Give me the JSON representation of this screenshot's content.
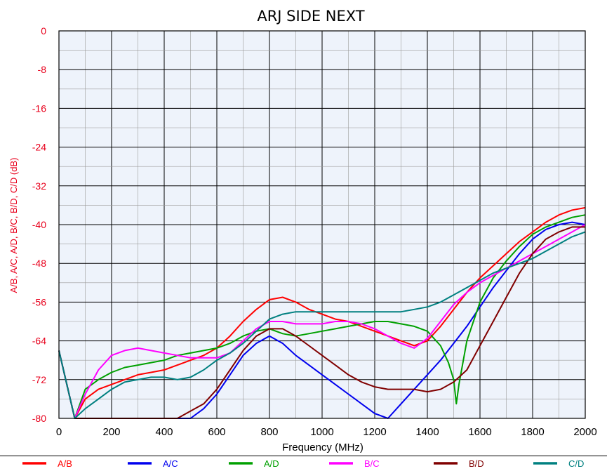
{
  "chart_data": {
    "type": "line",
    "title": "ARJ SIDE NEXT",
    "xlabel": "Frequency (MHz)",
    "ylabel": "A/B, A/C, A/D, B/C, B/D, C/D (dB)",
    "xlim": [
      0,
      2000
    ],
    "ylim": [
      -80,
      0
    ],
    "xticks": [
      "0",
      "200",
      "400",
      "600",
      "800",
      "1000",
      "1200",
      "1400",
      "1600",
      "1800",
      "2000"
    ],
    "yticks": [
      "0",
      "-8",
      "-16",
      "-24",
      "-32",
      "-40",
      "-48",
      "-56",
      "-64",
      "-72",
      "-80"
    ],
    "grid": true,
    "plot_background": "#eef3fb",
    "legend_position": "bottom",
    "series": [
      {
        "name": "A/B",
        "color": "#ff0000",
        "x": [
          0,
          60,
          100,
          150,
          200,
          250,
          300,
          350,
          400,
          450,
          500,
          550,
          600,
          650,
          700,
          750,
          800,
          850,
          900,
          950,
          1000,
          1050,
          1100,
          1150,
          1200,
          1250,
          1300,
          1350,
          1400,
          1450,
          1500,
          1550,
          1600,
          1650,
          1700,
          1750,
          1800,
          1850,
          1900,
          1950,
          2000
        ],
        "y": [
          -66,
          -80,
          -76,
          -74,
          -73,
          -72,
          -71,
          -70.5,
          -70,
          -69,
          -68,
          -67,
          -65.5,
          -63,
          -60,
          -57.5,
          -55.5,
          -55,
          -56,
          -57.5,
          -58.5,
          -59.5,
          -60,
          -61,
          -62,
          -63,
          -64,
          -65,
          -64,
          -61,
          -57.5,
          -54,
          -51,
          -48.5,
          -46,
          -43.5,
          -41.5,
          -39.5,
          -38,
          -37,
          -36.5
        ]
      },
      {
        "name": "A/C",
        "color": "#0000ee",
        "x": [
          0,
          60,
          100,
          150,
          200,
          250,
          300,
          350,
          400,
          450,
          500,
          550,
          600,
          650,
          700,
          750,
          800,
          850,
          900,
          950,
          1000,
          1050,
          1100,
          1150,
          1200,
          1250,
          1300,
          1350,
          1400,
          1450,
          1500,
          1550,
          1600,
          1650,
          1700,
          1750,
          1800,
          1850,
          1900,
          1950,
          2000
        ],
        "y": [
          -66,
          -80,
          -80,
          -80,
          -80,
          -80,
          -80,
          -80,
          -80,
          -80,
          -80,
          -78,
          -75,
          -71,
          -67,
          -64.5,
          -63,
          -64.5,
          -67,
          -69,
          -71,
          -73,
          -75,
          -77,
          -79,
          -80,
          -77,
          -74,
          -71,
          -68,
          -64.5,
          -61,
          -57,
          -53,
          -49.5,
          -46,
          -43,
          -41,
          -40,
          -39.5,
          -40
        ]
      },
      {
        "name": "A/D",
        "color": "#00a000",
        "x": [
          0,
          60,
          100,
          150,
          200,
          250,
          300,
          350,
          400,
          450,
          500,
          550,
          600,
          650,
          700,
          750,
          800,
          850,
          900,
          950,
          1000,
          1050,
          1100,
          1150,
          1200,
          1250,
          1300,
          1350,
          1400,
          1450,
          1480,
          1500,
          1510,
          1520,
          1550,
          1600,
          1650,
          1700,
          1750,
          1800,
          1850,
          1900,
          1950,
          2000
        ],
        "y": [
          -66,
          -80,
          -74,
          -72,
          -70.5,
          -69.5,
          -69,
          -68.5,
          -68,
          -67,
          -66.5,
          -66,
          -65.5,
          -64.5,
          -63,
          -62,
          -61.5,
          -62.5,
          -63,
          -62.5,
          -62,
          -61.5,
          -61,
          -60.5,
          -60,
          -60,
          -60.5,
          -61,
          -62,
          -65,
          -68.5,
          -72,
          -77,
          -73,
          -64,
          -56,
          -51,
          -47.5,
          -44.5,
          -42,
          -40.5,
          -39.5,
          -38.5,
          -38
        ]
      },
      {
        "name": "B/C",
        "color": "#ff00ff",
        "x": [
          0,
          60,
          100,
          150,
          200,
          250,
          300,
          350,
          400,
          450,
          500,
          550,
          600,
          650,
          700,
          750,
          800,
          850,
          900,
          950,
          1000,
          1050,
          1100,
          1150,
          1200,
          1250,
          1300,
          1350,
          1400,
          1450,
          1500,
          1550,
          1600,
          1650,
          1700,
          1750,
          1800,
          1850,
          1900,
          1950,
          2000
        ],
        "y": [
          -66,
          -80,
          -75,
          -70,
          -67,
          -66,
          -65.5,
          -66,
          -66.5,
          -67,
          -67.5,
          -67.5,
          -67.5,
          -66.5,
          -64,
          -61.5,
          -60,
          -60,
          -60.5,
          -60.5,
          -60.5,
          -60,
          -60,
          -60.5,
          -61.5,
          -63,
          -64.5,
          -65.5,
          -63.5,
          -60,
          -56.5,
          -54,
          -52,
          -50.5,
          -49,
          -47.5,
          -46,
          -44.5,
          -43,
          -41.5,
          -40
        ]
      },
      {
        "name": "B/D",
        "color": "#800000",
        "x": [
          0,
          60,
          100,
          150,
          200,
          250,
          300,
          350,
          400,
          450,
          500,
          550,
          600,
          650,
          700,
          750,
          800,
          850,
          900,
          950,
          1000,
          1050,
          1100,
          1150,
          1200,
          1250,
          1300,
          1350,
          1400,
          1450,
          1500,
          1550,
          1600,
          1650,
          1700,
          1750,
          1800,
          1850,
          1900,
          1950,
          2000
        ],
        "y": [
          -66,
          -80,
          -80,
          -80,
          -80,
          -80,
          -80,
          -80,
          -80,
          -80,
          -78.5,
          -77,
          -74,
          -70,
          -66,
          -63,
          -61.5,
          -61.5,
          -63,
          -65,
          -67,
          -69,
          -71,
          -72.5,
          -73.5,
          -74,
          -74,
          -74,
          -74.5,
          -74,
          -72.5,
          -70,
          -65,
          -60,
          -55,
          -50,
          -46,
          -43,
          -41.5,
          -40.5,
          -40.5
        ]
      },
      {
        "name": "C/D",
        "color": "#008080",
        "x": [
          0,
          60,
          100,
          150,
          200,
          250,
          300,
          350,
          400,
          450,
          500,
          550,
          600,
          650,
          700,
          750,
          800,
          850,
          900,
          950,
          1000,
          1050,
          1100,
          1150,
          1200,
          1250,
          1300,
          1350,
          1400,
          1450,
          1500,
          1550,
          1600,
          1650,
          1700,
          1750,
          1800,
          1850,
          1900,
          1950,
          2000
        ],
        "y": [
          -66,
          -80,
          -78,
          -76,
          -74,
          -72.5,
          -72,
          -71.5,
          -71.5,
          -72,
          -71.5,
          -70,
          -68,
          -66.5,
          -64.5,
          -62,
          -59.5,
          -58.5,
          -58,
          -58,
          -58,
          -58,
          -58,
          -58,
          -58,
          -58,
          -58,
          -57.5,
          -57,
          -56,
          -54.5,
          -53,
          -51.5,
          -50,
          -49,
          -48,
          -47,
          -45.5,
          -44,
          -42.5,
          -41.5
        ]
      }
    ]
  }
}
